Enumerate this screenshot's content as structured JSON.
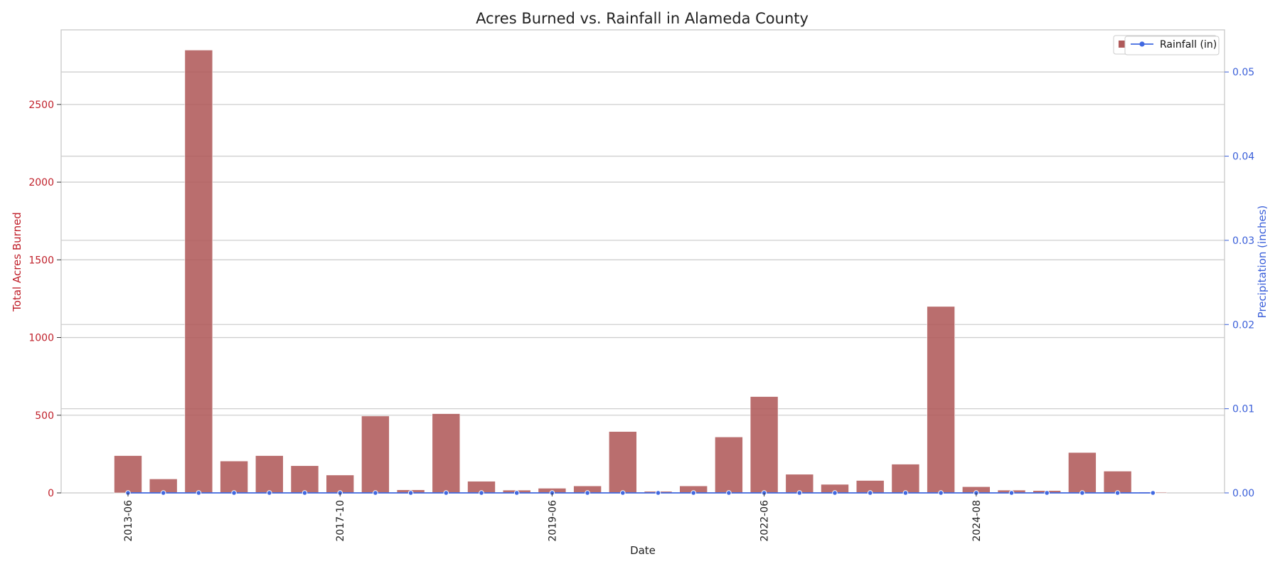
{
  "chart_data": {
    "type": "bar",
    "title": "Acres Burned vs. Rainfall in Alameda County",
    "xlabel": "Date",
    "ylabel": "Total Acres Burned",
    "ylabel_right": "Precipitation (inches)",
    "ylim": [
      0,
      2980
    ],
    "ylim_right": [
      0,
      0.055
    ],
    "yticks": [
      0,
      500,
      1000,
      1500,
      2000,
      2500
    ],
    "yticks_right": [
      "0.00",
      "0.01",
      "0.02",
      "0.03",
      "0.04",
      "0.05"
    ],
    "xtick_labels": [
      {
        "index": 0,
        "label": "2013-06"
      },
      {
        "index": 6,
        "label": "2017-10"
      },
      {
        "index": 12,
        "label": "2019-06"
      },
      {
        "index": 18,
        "label": "2022-06"
      },
      {
        "index": 24,
        "label": "2024-08"
      }
    ],
    "grid": true,
    "legend_position": "top-right",
    "series": [
      {
        "name": "Acres Burned",
        "kind": "bar",
        "color": "#b05a5a",
        "values": [
          240,
          90,
          2850,
          205,
          240,
          175,
          115,
          495,
          20,
          510,
          75,
          18,
          30,
          45,
          395,
          10,
          45,
          360,
          620,
          120,
          55,
          80,
          185,
          1200,
          40,
          18,
          15,
          260,
          140,
          5
        ]
      },
      {
        "name": "Rainfall (in)",
        "kind": "line",
        "color": "#4169e1",
        "values": [
          0,
          0,
          0,
          0,
          0,
          0,
          0,
          0,
          0,
          0,
          0,
          0,
          0,
          0,
          0,
          0,
          0,
          0,
          0,
          0,
          0,
          0,
          0,
          0,
          0,
          0,
          0,
          0,
          0,
          0
        ]
      }
    ],
    "colors": {
      "bars": "#b05a5a",
      "rainfall": "#4169e1",
      "left_axis": "#c0202a",
      "right_axis": "#3a5fd9"
    }
  },
  "legend": {
    "rainfall_label": "Rainfall (in)"
  }
}
